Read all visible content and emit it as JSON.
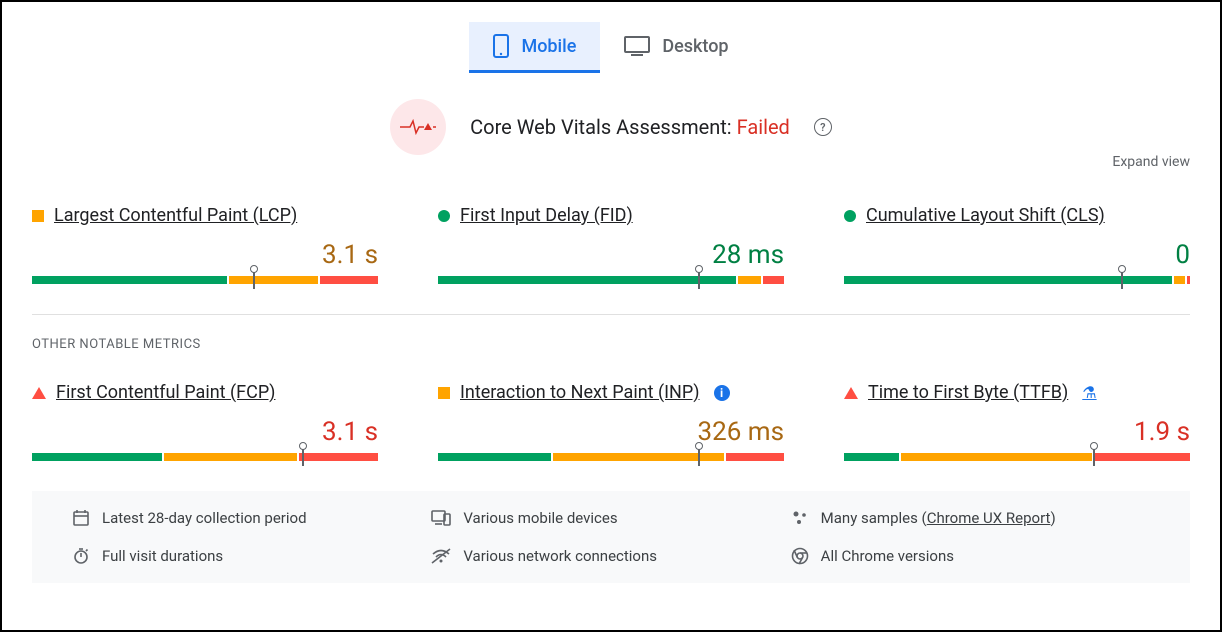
{
  "colors": {
    "green": "#00a160",
    "orange": "#ffa400",
    "red": "#ff4e42",
    "amber_text": "#a86813",
    "fail_text": "#d93025",
    "pass_text": "#008043",
    "blue": "#1a73e8",
    "grey": "#5f6368"
  },
  "tabs": {
    "mobile": "Mobile",
    "desktop": "Desktop",
    "active": "mobile"
  },
  "assessment": {
    "label": "Core Web Vitals Assessment:",
    "status_text": "Failed",
    "status_color": "#d93025"
  },
  "expand_label": "Expand view",
  "section_label": "OTHER NOTABLE METRICS",
  "core_metrics": [
    {
      "name": "Largest Contentful Paint (LCP)",
      "value": "3.1 s",
      "value_color": "#a86813",
      "status_shape": "square",
      "status_color": "#ffa400",
      "segments": [
        {
          "color": "#00a160",
          "pct": 57
        },
        {
          "color": "#ffa400",
          "pct": 26
        },
        {
          "color": "#ff4e42",
          "pct": 17
        }
      ],
      "marker_pct": 64
    },
    {
      "name": "First Input Delay (FID)",
      "value": "28 ms",
      "value_color": "#008043",
      "status_shape": "circle",
      "status_color": "#00a160",
      "segments": [
        {
          "color": "#00a160",
          "pct": 87
        },
        {
          "color": "#ffa400",
          "pct": 7
        },
        {
          "color": "#ff4e42",
          "pct": 6
        }
      ],
      "marker_pct": 75
    },
    {
      "name": "Cumulative Layout Shift (CLS)",
      "value": "0",
      "value_color": "#008043",
      "status_shape": "circle",
      "status_color": "#00a160",
      "segments": [
        {
          "color": "#00a160",
          "pct": 96
        },
        {
          "color": "#ffa400",
          "pct": 3
        },
        {
          "color": "#ff4e42",
          "pct": 1
        }
      ],
      "marker_pct": 80
    }
  ],
  "other_metrics": [
    {
      "name": "First Contentful Paint (FCP)",
      "value": "3.1 s",
      "value_color": "#d93025",
      "status_shape": "triangle",
      "status_color": "#ff4e42",
      "segments": [
        {
          "color": "#00a160",
          "pct": 38
        },
        {
          "color": "#ffa400",
          "pct": 39
        },
        {
          "color": "#ff4e42",
          "pct": 23
        }
      ],
      "marker_pct": 78,
      "extra_icon": null
    },
    {
      "name": "Interaction to Next Paint (INP)",
      "value": "326 ms",
      "value_color": "#a86813",
      "status_shape": "square",
      "status_color": "#ffa400",
      "segments": [
        {
          "color": "#00a160",
          "pct": 33
        },
        {
          "color": "#ffa400",
          "pct": 50
        },
        {
          "color": "#ff4e42",
          "pct": 17
        }
      ],
      "marker_pct": 75,
      "extra_icon": "info"
    },
    {
      "name": "Time to First Byte (TTFB)",
      "value": "1.9 s",
      "value_color": "#d93025",
      "status_shape": "triangle",
      "status_color": "#ff4e42",
      "segments": [
        {
          "color": "#00a160",
          "pct": 16
        },
        {
          "color": "#ffa400",
          "pct": 56
        },
        {
          "color": "#ff4e42",
          "pct": 28
        }
      ],
      "marker_pct": 72,
      "extra_icon": "flask"
    }
  ],
  "footer": {
    "items": [
      {
        "icon": "calendar",
        "text": "Latest 28-day collection period"
      },
      {
        "icon": "devices",
        "text": "Various mobile devices"
      },
      {
        "icon": "samples",
        "text": "Many samples ",
        "link": "Chrome UX Report",
        "suffix": ")"
      },
      {
        "icon": "timer",
        "text": "Full visit durations"
      },
      {
        "icon": "wifi",
        "text": "Various network connections"
      },
      {
        "icon": "chrome",
        "text": "All Chrome versions"
      }
    ]
  }
}
